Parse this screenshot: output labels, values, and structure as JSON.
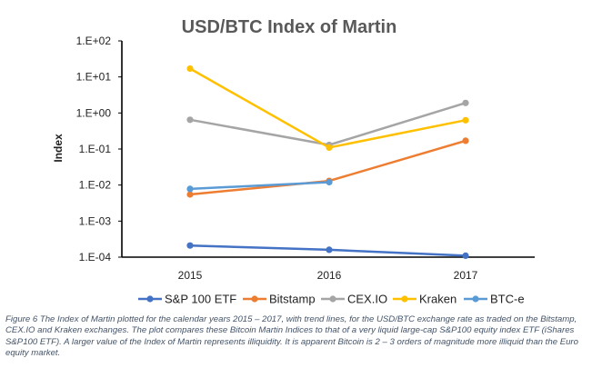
{
  "chart_data": {
    "type": "line",
    "title": "USD/BTC Index of Martin",
    "xlabel": "",
    "ylabel": "Index",
    "yscale": "log",
    "ylim": [
      0.0001,
      100
    ],
    "ytick_values": [
      100,
      10,
      1,
      0.1,
      0.01,
      0.001,
      0.0001
    ],
    "ytick_labels": [
      "1.E+02",
      "1.E+01",
      "1.E+00",
      "1.E-01",
      "1.E-02",
      "1.E-03",
      "1.E-04"
    ],
    "categories": [
      "2015",
      "2016",
      "2017"
    ],
    "series": [
      {
        "name": "S&P 100 ETF",
        "color": "#4472c4",
        "values": [
          0.00021,
          0.00016,
          0.00011
        ]
      },
      {
        "name": "Bitstamp",
        "color": "#ed7d31",
        "values": [
          0.0055,
          0.013,
          0.17
        ]
      },
      {
        "name": "CEX.IO",
        "color": "#a5a5a5",
        "values": [
          0.65,
          0.13,
          1.9
        ]
      },
      {
        "name": "Kraken",
        "color": "#ffc000",
        "values": [
          17,
          0.11,
          0.63
        ]
      },
      {
        "name": "BTC-e",
        "color": "#5b9bd5",
        "values": [
          0.0078,
          0.012,
          null
        ]
      }
    ],
    "legend_position": "bottom"
  },
  "caption": "Figure 6 The Index of Martin plotted for the calendar years 2015 – 2017, with trend lines, for the USD/BTC exchange rate as traded on the Bitstamp, CEX.IO and Kraken exchanges. The plot compares these Bitcoin Martin Indices to that of a very liquid large-cap S&P100 equity index ETF (iShares S&P100 ETF). A larger value of the Index of Martin represents illiquidity. It is apparent Bitcoin is 2 – 3 orders of magnitude more illiquid than the Euro equity market."
}
